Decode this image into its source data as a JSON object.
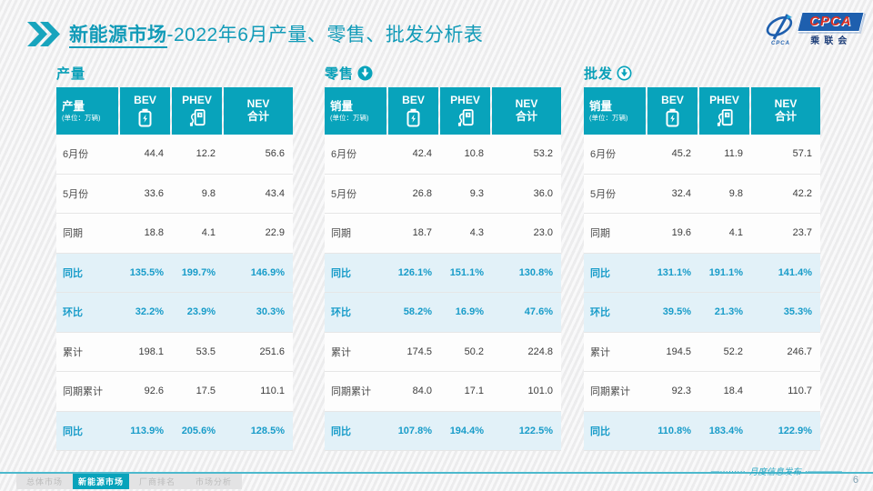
{
  "accent": "#08a3bb",
  "header": {
    "title_bold": "新能源市场",
    "title_rest": "-2022年6月产量、零售、批发分析表",
    "logo": {
      "emblem_caption": "CPCA",
      "cpca": "CPCA",
      "cn": "乘联会"
    }
  },
  "watermark_text": "CPCA 乘联会",
  "tables": [
    {
      "section": "产量",
      "unit_label": "产量",
      "unit_sub": "(单位：万辆)",
      "columns": [
        {
          "label": "BEV",
          "icon": "battery-icon"
        },
        {
          "label": "PHEV",
          "icon": "charger-icon"
        },
        {
          "label": "NEV",
          "label2": "合计"
        }
      ],
      "rows": [
        {
          "label": "6月份",
          "values": [
            "44.4",
            "12.2",
            "56.6"
          ],
          "highlight": false
        },
        {
          "label": "5月份",
          "values": [
            "33.6",
            "9.8",
            "43.4"
          ],
          "highlight": false
        },
        {
          "label": "同期",
          "values": [
            "18.8",
            "4.1",
            "22.9"
          ],
          "highlight": false
        },
        {
          "label": "同比",
          "values": [
            "135.5%",
            "199.7%",
            "146.9%"
          ],
          "highlight": true
        },
        {
          "label": "环比",
          "values": [
            "32.2%",
            "23.9%",
            "30.3%"
          ],
          "highlight": true
        },
        {
          "label": "累计",
          "values": [
            "198.1",
            "53.5",
            "251.6"
          ],
          "highlight": false
        },
        {
          "label": "同期累计",
          "values": [
            "92.6",
            "17.5",
            "110.1"
          ],
          "highlight": false
        },
        {
          "label": "同比",
          "values": [
            "113.9%",
            "205.6%",
            "128.5%"
          ],
          "highlight": true
        }
      ]
    },
    {
      "section": "零售",
      "unit_label": "销量",
      "unit_sub": "(单位：万辆)",
      "columns": [
        {
          "label": "BEV",
          "icon": "battery-icon"
        },
        {
          "label": "PHEV",
          "icon": "charger-icon"
        },
        {
          "label": "NEV",
          "label2": "合计"
        }
      ],
      "rows": [
        {
          "label": "6月份",
          "values": [
            "42.4",
            "10.8",
            "53.2"
          ],
          "highlight": false
        },
        {
          "label": "5月份",
          "values": [
            "26.8",
            "9.3",
            "36.0"
          ],
          "highlight": false
        },
        {
          "label": "同期",
          "values": [
            "18.7",
            "4.3",
            "23.0"
          ],
          "highlight": false
        },
        {
          "label": "同比",
          "values": [
            "126.1%",
            "151.1%",
            "130.8%"
          ],
          "highlight": true
        },
        {
          "label": "环比",
          "values": [
            "58.2%",
            "16.9%",
            "47.6%"
          ],
          "highlight": true
        },
        {
          "label": "累计",
          "values": [
            "174.5",
            "50.2",
            "224.8"
          ],
          "highlight": false
        },
        {
          "label": "同期累计",
          "values": [
            "84.0",
            "17.1",
            "101.0"
          ],
          "highlight": false
        },
        {
          "label": "同比",
          "values": [
            "107.8%",
            "194.4%",
            "122.5%"
          ],
          "highlight": true
        }
      ]
    },
    {
      "section": "批发",
      "unit_label": "销量",
      "unit_sub": "(单位：万辆)",
      "columns": [
        {
          "label": "BEV",
          "icon": "battery-icon"
        },
        {
          "label": "PHEV",
          "icon": "charger-icon"
        },
        {
          "label": "NEV",
          "label2": "合计"
        }
      ],
      "rows": [
        {
          "label": "6月份",
          "values": [
            "45.2",
            "11.9",
            "57.1"
          ],
          "highlight": false
        },
        {
          "label": "5月份",
          "values": [
            "32.4",
            "9.8",
            "42.2"
          ],
          "highlight": false
        },
        {
          "label": "同期",
          "values": [
            "19.6",
            "4.1",
            "23.7"
          ],
          "highlight": false
        },
        {
          "label": "同比",
          "values": [
            "131.1%",
            "191.1%",
            "141.4%"
          ],
          "highlight": true
        },
        {
          "label": "环比",
          "values": [
            "39.5%",
            "21.3%",
            "35.3%"
          ],
          "highlight": true
        },
        {
          "label": "累计",
          "values": [
            "194.5",
            "52.2",
            "246.7"
          ],
          "highlight": false
        },
        {
          "label": "同期累计",
          "values": [
            "92.3",
            "18.4",
            "110.7"
          ],
          "highlight": false
        },
        {
          "label": "同比",
          "values": [
            "110.8%",
            "183.4%",
            "122.9%"
          ],
          "highlight": true
        }
      ]
    }
  ],
  "footer": {
    "tabs": [
      {
        "label": "总体市场",
        "active": false
      },
      {
        "label": "新能源市场",
        "active": true
      },
      {
        "label": "厂商排名",
        "active": false
      },
      {
        "label": "市场分析",
        "active": false
      }
    ],
    "deco_left": "—·········",
    "release_note": "月度信息发布",
    "deco_right": "·————",
    "page_number": "6"
  }
}
